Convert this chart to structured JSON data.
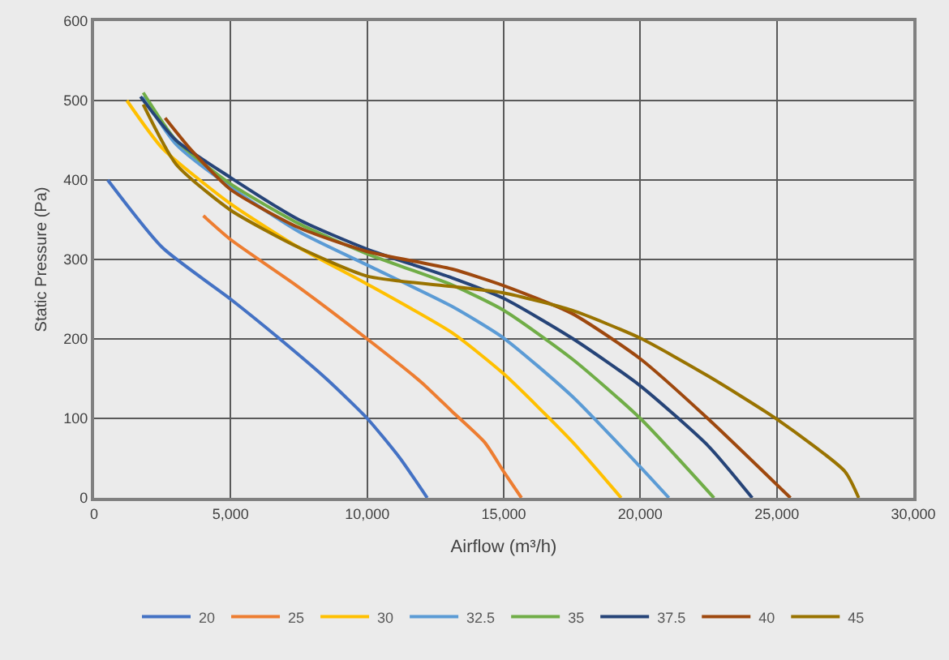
{
  "chart_data": {
    "type": "line",
    "xlabel": "Airflow (m³/h)",
    "ylabel": "Static Pressure (Pa)",
    "xlim": [
      0,
      30000
    ],
    "ylim": [
      0,
      600
    ],
    "xticks": [
      {
        "value": 0,
        "label": "0"
      },
      {
        "value": 5000,
        "label": "5,000"
      },
      {
        "value": 10000,
        "label": "10,000"
      },
      {
        "value": 15000,
        "label": "15,000"
      },
      {
        "value": 20000,
        "label": "20,000"
      },
      {
        "value": 25000,
        "label": "25,000"
      },
      {
        "value": 30000,
        "label": "30,000"
      }
    ],
    "yticks": [
      0,
      100,
      200,
      300,
      400,
      500,
      600
    ],
    "grid": true,
    "legend": "bottom",
    "marker": "none",
    "line_style": "solid",
    "series": [
      {
        "name": "20",
        "color": "#4472c4",
        "x": [
          500,
          2500,
          5000,
          6800,
          8500,
          10000,
          11200,
          12200
        ],
        "values": [
          400,
          315,
          250,
          200,
          150,
          100,
          50,
          0
        ]
      },
      {
        "name": "25",
        "color": "#ed7d31",
        "x": [
          4000,
          5000,
          7500,
          10000,
          12000,
          13100,
          14300,
          15000,
          15650
        ],
        "values": [
          355,
          325,
          265,
          200,
          145,
          109,
          70,
          33,
          0
        ]
      },
      {
        "name": "30",
        "color": "#ffc000",
        "x": [
          1200,
          2500,
          5000,
          7500,
          10000,
          13100,
          15000,
          17500,
          19300
        ],
        "values": [
          500,
          440,
          370,
          315,
          269,
          208,
          156,
          71,
          0
        ]
      },
      {
        "name": "32.5",
        "color": "#5b9bd5",
        "x": [
          1800,
          3000,
          5000,
          7500,
          10000,
          13100,
          15000,
          17500,
          20000,
          21050
        ],
        "values": [
          505,
          445,
          391,
          335,
          293,
          241,
          201,
          128,
          39,
          0
        ]
      },
      {
        "name": "35",
        "color": "#70ad47",
        "x": [
          1800,
          3000,
          5000,
          7500,
          10000,
          13100,
          15000,
          17500,
          20000,
          22700
        ],
        "values": [
          510,
          450,
          395,
          345,
          307,
          268,
          236,
          175,
          100,
          0
        ]
      },
      {
        "name": "37.5",
        "color": "#264478",
        "x": [
          1700,
          3000,
          5000,
          7500,
          10000,
          13100,
          15000,
          17500,
          20000,
          22500,
          24100
        ],
        "values": [
          505,
          450,
          403,
          350,
          313,
          277,
          251,
          201,
          141,
          65,
          0
        ]
      },
      {
        "name": "40",
        "color": "#9e480e",
        "x": [
          2600,
          3500,
          5000,
          7500,
          10000,
          13100,
          15000,
          17500,
          20000,
          22500,
          25500
        ],
        "values": [
          478,
          440,
          388,
          340,
          310,
          288,
          267,
          232,
          175,
          99,
          0
        ]
      },
      {
        "name": "45",
        "color": "#997300",
        "x": [
          1800,
          3000,
          5000,
          7500,
          10000,
          13100,
          15000,
          17500,
          20000,
          22500,
          25000,
          27500,
          28000
        ],
        "values": [
          495,
          420,
          362,
          315,
          279,
          266,
          258,
          236,
          201,
          153,
          99,
          33,
          0
        ]
      }
    ]
  }
}
